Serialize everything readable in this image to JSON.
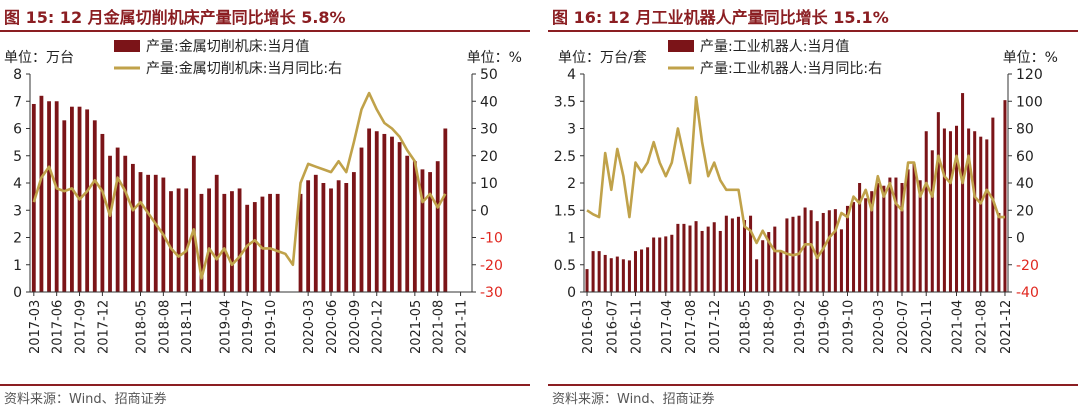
{
  "colors": {
    "accent": "#8b1e22",
    "bar": "#7b1418",
    "line": "#c0a24a",
    "neg": "#e0271f",
    "axis": "#333333",
    "grid": "#bbbbbb"
  },
  "sources": {
    "left": "资料来源：Wind、招商证券",
    "right": "资料来源：Wind、招商证券"
  },
  "chart_data": [
    {
      "type": "bar+line",
      "title": "图 15:  12 月金属切削机床产量同比增长 5.8%",
      "ylabel_left": "单位：万台",
      "ylabel_right": "单位：%",
      "ylim_left": [
        0,
        8
      ],
      "ylim_right": [
        -30,
        50
      ],
      "yticks_left": [
        "0",
        "1",
        "2",
        "3",
        "4",
        "5",
        "6",
        "7",
        "8"
      ],
      "yticks_right": [
        "-30",
        "-20",
        "-10",
        "0",
        "10",
        "20",
        "30",
        "40",
        "50"
      ],
      "x_tick_labels": [
        "2017-03",
        "2017-06",
        "2017-09",
        "2017-12",
        "2018-05",
        "2018-08",
        "2018-11",
        "2019-04",
        "2019-07",
        "2019-10",
        "2020-03",
        "2020-06",
        "2020-09",
        "2020-12",
        "2021-05",
        "2021-08",
        "2021-11"
      ],
      "x_tick_months": [
        0,
        3,
        6,
        9,
        14,
        17,
        20,
        25,
        28,
        31,
        36,
        39,
        42,
        45,
        50,
        53,
        56
      ],
      "start_month": "2017-03",
      "month_count": 58,
      "series": [
        {
          "name": "产量:金属切削机床:当月值",
          "type": "bar",
          "axis": "left",
          "points": [
            [
              0,
              6.9
            ],
            [
              1,
              7.2
            ],
            [
              2,
              7.0
            ],
            [
              3,
              7.0
            ],
            [
              4,
              6.3
            ],
            [
              5,
              6.8
            ],
            [
              6,
              6.8
            ],
            [
              7,
              6.7
            ],
            [
              8,
              6.3
            ],
            [
              9,
              5.8
            ],
            [
              10,
              5.0
            ],
            [
              11,
              5.3
            ],
            [
              12,
              5.0
            ],
            [
              13,
              4.7
            ],
            [
              14,
              4.4
            ],
            [
              15,
              4.3
            ],
            [
              16,
              4.3
            ],
            [
              17,
              4.2
            ],
            [
              18,
              3.7
            ],
            [
              19,
              3.8
            ],
            [
              20,
              3.8
            ],
            [
              21,
              5.0
            ],
            [
              22,
              3.6
            ],
            [
              23,
              3.8
            ],
            [
              24,
              4.3
            ],
            [
              25,
              3.6
            ],
            [
              26,
              3.7
            ],
            [
              27,
              3.8
            ],
            [
              28,
              3.2
            ],
            [
              29,
              3.3
            ],
            [
              30,
              3.5
            ],
            [
              31,
              3.6
            ],
            [
              32,
              3.6
            ],
            [
              35,
              3.6
            ],
            [
              36,
              4.1
            ],
            [
              37,
              4.3
            ],
            [
              38,
              4.0
            ],
            [
              39,
              3.8
            ],
            [
              40,
              4.1
            ],
            [
              41,
              4.0
            ],
            [
              42,
              4.4
            ],
            [
              43,
              5.3
            ],
            [
              44,
              6.0
            ],
            [
              45,
              5.9
            ],
            [
              46,
              5.8
            ],
            [
              47,
              5.7
            ],
            [
              48,
              5.5
            ],
            [
              49,
              5.0
            ],
            [
              50,
              4.8
            ],
            [
              51,
              4.5
            ],
            [
              52,
              4.4
            ],
            [
              53,
              4.8
            ],
            [
              54,
              6.0
            ]
          ]
        },
        {
          "name": "产量:金属切削机床:当月同比:右",
          "type": "line",
          "axis": "right",
          "points": [
            [
              0,
              3
            ],
            [
              1,
              12
            ],
            [
              2,
              16
            ],
            [
              3,
              8
            ],
            [
              4,
              7
            ],
            [
              5,
              8
            ],
            [
              6,
              4
            ],
            [
              7,
              7
            ],
            [
              8,
              11
            ],
            [
              9,
              7
            ],
            [
              10,
              -2
            ],
            [
              11,
              12
            ],
            [
              12,
              7
            ],
            [
              13,
              0
            ],
            [
              14,
              3
            ],
            [
              15,
              -1
            ],
            [
              16,
              -5
            ],
            [
              17,
              -9
            ],
            [
              18,
              -14
            ],
            [
              19,
              -17
            ],
            [
              20,
              -15
            ],
            [
              21,
              -7
            ],
            [
              22,
              -25
            ],
            [
              23,
              -14
            ],
            [
              24,
              -18
            ],
            [
              25,
              -14
            ],
            [
              26,
              -20
            ],
            [
              27,
              -17
            ],
            [
              28,
              -13
            ],
            [
              29,
              -11
            ],
            [
              30,
              -14
            ],
            [
              31,
              -14
            ],
            [
              32,
              -15
            ],
            [
              33,
              -16
            ],
            [
              34,
              -20
            ],
            [
              35,
              10
            ],
            [
              36,
              17
            ],
            [
              37,
              16
            ],
            [
              38,
              15
            ],
            [
              39,
              14
            ],
            [
              40,
              18
            ],
            [
              41,
              14
            ],
            [
              42,
              25
            ],
            [
              43,
              37
            ],
            [
              44,
              43
            ],
            [
              45,
              37
            ],
            [
              46,
              32
            ],
            [
              47,
              30
            ],
            [
              48,
              27
            ],
            [
              49,
              22
            ],
            [
              50,
              18
            ],
            [
              51,
              3
            ],
            [
              52,
              6
            ],
            [
              53,
              1
            ],
            [
              54,
              6
            ]
          ]
        }
      ]
    },
    {
      "type": "bar+line",
      "title": "图 16:  12 月工业机器人产量同比增长 15.1%",
      "ylabel_left": "单位：万台/套",
      "ylabel_right": "单位：%",
      "ylim_left": [
        0,
        4
      ],
      "ylim_right": [
        -40,
        120
      ],
      "yticks_left": [
        "0",
        "0.5",
        "1",
        "1.5",
        "2",
        "2.5",
        "3",
        "3.5",
        "4"
      ],
      "yticks_right": [
        "-40",
        "-20",
        "0",
        "20",
        "40",
        "60",
        "80",
        "100",
        "120"
      ],
      "x_tick_labels": [
        "2016-03",
        "2016-07",
        "2016-11",
        "2017-04",
        "2017-08",
        "2017-12",
        "2018-05",
        "2018-09",
        "2019-02",
        "2019-06",
        "2019-10",
        "2020-03",
        "2020-07",
        "2020-11",
        "2021-04",
        "2021-08",
        "2021-12"
      ],
      "x_tick_months": [
        0,
        4,
        8,
        13,
        17,
        21,
        26,
        30,
        35,
        39,
        43,
        48,
        52,
        56,
        61,
        65,
        69
      ],
      "start_month": "2016-03",
      "month_count": 70,
      "series": [
        {
          "name": "产量:工业机器人:当月值",
          "type": "bar",
          "axis": "left",
          "points": [
            [
              0,
              0.42
            ],
            [
              1,
              0.75
            ],
            [
              2,
              0.75
            ],
            [
              3,
              0.68
            ],
            [
              4,
              0.62
            ],
            [
              5,
              0.65
            ],
            [
              6,
              0.6
            ],
            [
              7,
              0.58
            ],
            [
              8,
              0.75
            ],
            [
              9,
              0.78
            ],
            [
              10,
              0.82
            ],
            [
              11,
              1.0
            ],
            [
              12,
              1.0
            ],
            [
              13,
              1.02
            ],
            [
              14,
              1.05
            ],
            [
              15,
              1.25
            ],
            [
              16,
              1.25
            ],
            [
              17,
              1.22
            ],
            [
              18,
              1.3
            ],
            [
              19,
              1.12
            ],
            [
              20,
              1.2
            ],
            [
              21,
              1.28
            ],
            [
              22,
              1.12
            ],
            [
              23,
              1.4
            ],
            [
              24,
              1.35
            ],
            [
              25,
              1.38
            ],
            [
              26,
              1.32
            ],
            [
              27,
              1.4
            ],
            [
              28,
              0.6
            ],
            [
              29,
              0.95
            ],
            [
              30,
              1.1
            ],
            [
              31,
              1.2
            ],
            [
              32,
              0.75
            ],
            [
              33,
              1.35
            ],
            [
              34,
              1.38
            ],
            [
              35,
              1.4
            ],
            [
              36,
              1.55
            ],
            [
              37,
              1.5
            ],
            [
              38,
              1.3
            ],
            [
              39,
              1.45
            ],
            [
              40,
              1.5
            ],
            [
              41,
              1.52
            ],
            [
              42,
              1.15
            ],
            [
              43,
              1.58
            ],
            [
              44,
              1.65
            ],
            [
              45,
              2.0
            ],
            [
              46,
              1.72
            ],
            [
              47,
              1.85
            ],
            [
              48,
              2.0
            ],
            [
              49,
              1.95
            ],
            [
              50,
              2.1
            ],
            [
              51,
              2.1
            ],
            [
              52,
              2.0
            ],
            [
              53,
              2.25
            ],
            [
              54,
              2.35
            ],
            [
              55,
              2.05
            ],
            [
              56,
              2.95
            ],
            [
              57,
              2.6
            ],
            [
              58,
              3.3
            ],
            [
              59,
              3.0
            ],
            [
              60,
              2.95
            ],
            [
              61,
              3.05
            ],
            [
              62,
              3.65
            ],
            [
              63,
              3.0
            ],
            [
              64,
              2.95
            ],
            [
              65,
              2.85
            ],
            [
              66,
              2.8
            ],
            [
              67,
              3.2
            ],
            [
              68,
              1.45
            ],
            [
              69,
              3.52
            ]
          ]
        },
        {
          "name": "产量:工业机器人:当月同比:右",
          "type": "line",
          "axis": "right",
          "points": [
            [
              0,
              20
            ],
            [
              1,
              17
            ],
            [
              2,
              15
            ],
            [
              3,
              62
            ],
            [
              4,
              35
            ],
            [
              5,
              65
            ],
            [
              6,
              45
            ],
            [
              7,
              15
            ],
            [
              8,
              55
            ],
            [
              9,
              48
            ],
            [
              10,
              55
            ],
            [
              11,
              70
            ],
            [
              12,
              55
            ],
            [
              13,
              45
            ],
            [
              14,
              55
            ],
            [
              15,
              80
            ],
            [
              16,
              60
            ],
            [
              17,
              40
            ],
            [
              18,
              103
            ],
            [
              19,
              70
            ],
            [
              20,
              45
            ],
            [
              21,
              55
            ],
            [
              22,
              42
            ],
            [
              23,
              35
            ],
            [
              24,
              35
            ],
            [
              25,
              35
            ],
            [
              26,
              8
            ],
            [
              27,
              5
            ],
            [
              28,
              -4
            ],
            [
              29,
              5
            ],
            [
              30,
              -3
            ],
            [
              31,
              -10
            ],
            [
              32,
              -10
            ],
            [
              33,
              -12
            ],
            [
              34,
              -13
            ],
            [
              35,
              -12
            ],
            [
              36,
              -5
            ],
            [
              37,
              -5
            ],
            [
              38,
              -15
            ],
            [
              39,
              -8
            ],
            [
              40,
              0
            ],
            [
              41,
              5
            ],
            [
              42,
              18
            ],
            [
              43,
              15
            ],
            [
              44,
              30
            ],
            [
              45,
              25
            ],
            [
              46,
              35
            ],
            [
              47,
              20
            ],
            [
              48,
              45
            ],
            [
              49,
              30
            ],
            [
              50,
              40
            ],
            [
              51,
              25
            ],
            [
              52,
              20
            ],
            [
              53,
              55
            ],
            [
              54,
              55
            ],
            [
              55,
              30
            ],
            [
              56,
              40
            ],
            [
              57,
              30
            ],
            [
              58,
              60
            ],
            [
              59,
              45
            ],
            [
              60,
              40
            ],
            [
              61,
              60
            ],
            [
              62,
              40
            ],
            [
              63,
              60
            ],
            [
              64,
              30
            ],
            [
              65,
              25
            ],
            [
              66,
              35
            ],
            [
              67,
              28
            ],
            [
              68,
              15
            ],
            [
              69,
              15
            ]
          ]
        }
      ]
    }
  ]
}
